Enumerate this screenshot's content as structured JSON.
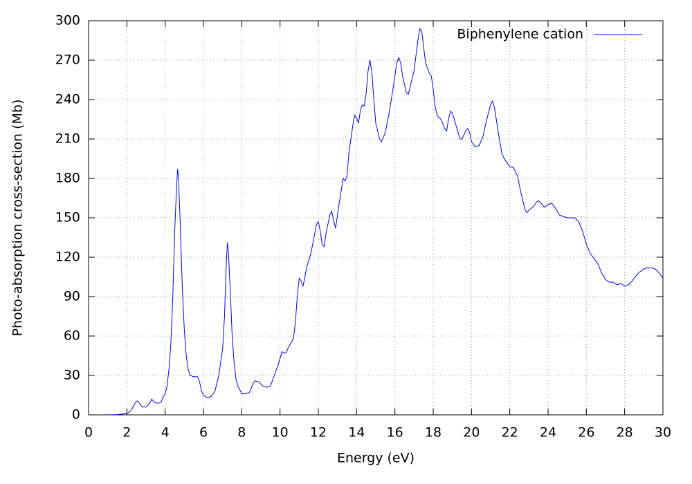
{
  "chart_data": {
    "type": "line",
    "x_label": "Energy (eV)",
    "y_label": "Photo-absorption cross-section (Mb)",
    "x": [
      1.0,
      1.5,
      2.0,
      2.2,
      2.4,
      2.5,
      2.6,
      2.8,
      3.0,
      3.2,
      3.3,
      3.4,
      3.5,
      3.7,
      3.8,
      3.9,
      4.0,
      4.1,
      4.2,
      4.3,
      4.4,
      4.5,
      4.6,
      4.65,
      4.7,
      4.8,
      4.9,
      5.0,
      5.1,
      5.2,
      5.3,
      5.5,
      5.7,
      5.8,
      5.9,
      6.0,
      6.2,
      6.4,
      6.6,
      6.8,
      7.0,
      7.1,
      7.2,
      7.25,
      7.3,
      7.4,
      7.5,
      7.6,
      7.7,
      7.8,
      8.0,
      8.2,
      8.4,
      8.6,
      8.7,
      8.9,
      9.1,
      9.3,
      9.5,
      9.7,
      9.9,
      10.1,
      10.3,
      10.5,
      10.7,
      10.8,
      10.9,
      11.0,
      11.1,
      11.2,
      11.3,
      11.4,
      11.6,
      11.8,
      11.9,
      12.0,
      12.1,
      12.2,
      12.3,
      12.4,
      12.6,
      12.7,
      12.8,
      12.9,
      13.0,
      13.1,
      13.3,
      13.4,
      13.5,
      13.6,
      13.8,
      13.9,
      14.0,
      14.1,
      14.2,
      14.3,
      14.4,
      14.5,
      14.6,
      14.7,
      14.8,
      14.9,
      15.0,
      15.2,
      15.3,
      15.5,
      15.7,
      15.9,
      16.0,
      16.1,
      16.2,
      16.3,
      16.4,
      16.6,
      16.7,
      16.8,
      17.0,
      17.2,
      17.3,
      17.4,
      17.5,
      17.6,
      17.8,
      17.9,
      18.0,
      18.1,
      18.2,
      18.4,
      18.6,
      18.7,
      18.8,
      18.9,
      19.0,
      19.2,
      19.4,
      19.5,
      19.7,
      19.8,
      19.9,
      20.0,
      20.2,
      20.4,
      20.6,
      20.8,
      21.0,
      21.1,
      21.2,
      21.4,
      21.6,
      21.8,
      22.0,
      22.2,
      22.4,
      22.6,
      22.8,
      22.9,
      23.0,
      23.2,
      23.4,
      23.5,
      23.7,
      23.8,
      24.0,
      24.2,
      24.4,
      24.6,
      24.8,
      25.0,
      25.4,
      25.6,
      25.8,
      26.0,
      26.2,
      26.4,
      26.6,
      26.8,
      27.0,
      27.2,
      27.4,
      27.6,
      27.8,
      28.0,
      28.2,
      28.4,
      28.6,
      28.8,
      29.0,
      29.2,
      29.4,
      29.6,
      29.8,
      30.0
    ],
    "series": [
      {
        "name": "Biphenylene cation",
        "color": "#0000ff",
        "values": [
          0,
          0.2,
          1,
          3,
          8,
          10.5,
          10,
          6,
          6,
          9,
          12,
          10,
          9,
          9,
          10,
          14,
          16,
          22,
          35,
          55,
          90,
          140,
          175,
          187,
          180,
          140,
          95,
          65,
          45,
          35,
          30,
          29,
          29,
          25,
          18,
          15,
          13,
          14,
          18,
          30,
          50,
          75,
          118,
          131,
          125,
          95,
          60,
          40,
          27,
          22,
          16,
          16,
          17,
          24,
          26,
          25,
          22,
          21,
          22,
          30,
          38,
          48,
          47,
          53,
          58,
          70,
          90,
          104,
          102,
          98,
          105,
          113,
          122,
          137,
          145,
          147,
          140,
          130,
          128,
          138,
          152,
          155,
          148,
          142,
          152,
          162,
          180,
          178,
          182,
          200,
          220,
          228,
          226,
          222,
          232,
          236,
          235,
          245,
          262,
          270,
          260,
          240,
          222,
          210,
          208,
          215,
          230,
          248,
          258,
          268,
          272,
          268,
          258,
          245,
          244,
          250,
          262,
          285,
          294,
          292,
          280,
          268,
          260,
          258,
          248,
          235,
          228,
          225,
          218,
          216,
          225,
          231,
          230,
          220,
          210,
          210,
          216,
          218,
          215,
          208,
          204,
          205,
          212,
          225,
          236,
          239,
          234,
          215,
          198,
          193,
          189,
          188,
          182,
          168,
          156,
          154,
          156,
          158,
          162,
          163,
          160,
          158,
          160,
          161,
          157,
          152,
          151,
          150,
          150,
          147,
          140,
          130,
          123,
          119,
          115,
          108,
          103,
          101,
          101,
          99,
          100,
          98,
          99,
          102,
          106,
          109,
          111,
          112,
          112,
          111,
          108,
          104
        ]
      }
    ],
    "xlim": [
      0,
      30
    ],
    "xticks": [
      0,
      2,
      4,
      6,
      8,
      10,
      12,
      14,
      16,
      18,
      20,
      22,
      24,
      26,
      28,
      30
    ],
    "ylim": [
      0,
      300
    ],
    "yticks": [
      0,
      30,
      60,
      90,
      120,
      150,
      180,
      210,
      240,
      270,
      300
    ],
    "grid": true,
    "legend": "top-right"
  }
}
